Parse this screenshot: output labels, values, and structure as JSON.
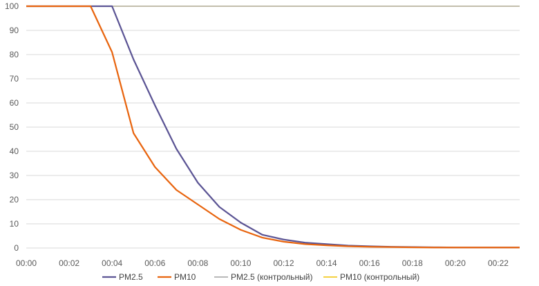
{
  "chart_data": {
    "type": "line",
    "title": "",
    "xlabel": "",
    "ylabel": "",
    "ylim": [
      0,
      100
    ],
    "xlim": [
      "00:00",
      "00:23"
    ],
    "yticks": [
      "0",
      "10",
      "20",
      "30",
      "40",
      "50",
      "60",
      "70",
      "80",
      "90",
      "100"
    ],
    "xticks": [
      "00:00",
      "00:02",
      "00:04",
      "00:06",
      "00:08",
      "00:10",
      "00:12",
      "00:14",
      "00:16",
      "00:18",
      "00:20",
      "00:22"
    ],
    "grid": "horizontal",
    "legend_position": "bottom",
    "series": [
      {
        "name": "PM2.5",
        "color": "#5B5494",
        "x": [
          "00:00",
          "00:01",
          "00:02",
          "00:03",
          "00:04",
          "00:05",
          "00:06",
          "00:07",
          "00:08",
          "00:09",
          "00:10",
          "00:11",
          "00:12",
          "00:13",
          "00:14",
          "00:15",
          "00:16",
          "00:17",
          "00:18",
          "00:19",
          "00:20",
          "00:21",
          "00:22",
          "00:23"
        ],
        "values": [
          100,
          100,
          100,
          100,
          100,
          78,
          59,
          41,
          27,
          17,
          10.5,
          5.5,
          3.5,
          2.2,
          1.6,
          1.0,
          0.7,
          0.5,
          0.4,
          0.3,
          0.2,
          0.2,
          0.2,
          0.2
        ]
      },
      {
        "name": "PM10",
        "color": "#E8640E",
        "x": [
          "00:00",
          "00:01",
          "00:02",
          "00:03",
          "00:04",
          "00:05",
          "00:06",
          "00:07",
          "00:08",
          "00:09",
          "00:10",
          "00:11",
          "00:12",
          "00:13",
          "00:14",
          "00:15",
          "00:16",
          "00:17",
          "00:18",
          "00:19",
          "00:20",
          "00:21",
          "00:22",
          "00:23"
        ],
        "values": [
          100,
          100,
          100,
          100,
          81,
          47.5,
          33.5,
          24,
          18,
          12,
          7.5,
          4.3,
          2.6,
          1.6,
          1.1,
          0.7,
          0.5,
          0.4,
          0.3,
          0.2,
          0.2,
          0.2,
          0.2,
          0.2
        ]
      },
      {
        "name": "PM2.5 (контрольный)",
        "color": "#A0A0A0",
        "x": [
          "00:00",
          "00:01",
          "00:02",
          "00:03",
          "00:04",
          "00:05",
          "00:06",
          "00:07",
          "00:08",
          "00:09",
          "00:10",
          "00:11",
          "00:12",
          "00:13",
          "00:14",
          "00:15",
          "00:16",
          "00:17",
          "00:18",
          "00:19",
          "00:20",
          "00:21",
          "00:22",
          "00:23"
        ],
        "values": [
          100,
          100,
          100,
          100,
          100,
          100,
          100,
          100,
          100,
          100,
          100,
          100,
          100,
          100,
          100,
          100,
          100,
          100,
          100,
          100,
          100,
          100,
          100,
          100
        ]
      },
      {
        "name": "PM10  (контрольный)",
        "color": "#F2C200",
        "x": [
          "00:00",
          "00:01",
          "00:02",
          "00:03",
          "00:04",
          "00:05",
          "00:06",
          "00:07",
          "00:08",
          "00:09",
          "00:10",
          "00:11",
          "00:12",
          "00:13",
          "00:14",
          "00:15",
          "00:16",
          "00:17",
          "00:18",
          "00:19",
          "00:20",
          "00:21",
          "00:22",
          "00:23"
        ],
        "values": [
          100,
          100,
          100,
          100,
          100,
          100,
          100,
          100,
          100,
          100,
          100,
          100,
          100,
          100,
          100,
          100,
          100,
          100,
          100,
          100,
          100,
          100,
          100,
          100
        ]
      }
    ]
  }
}
